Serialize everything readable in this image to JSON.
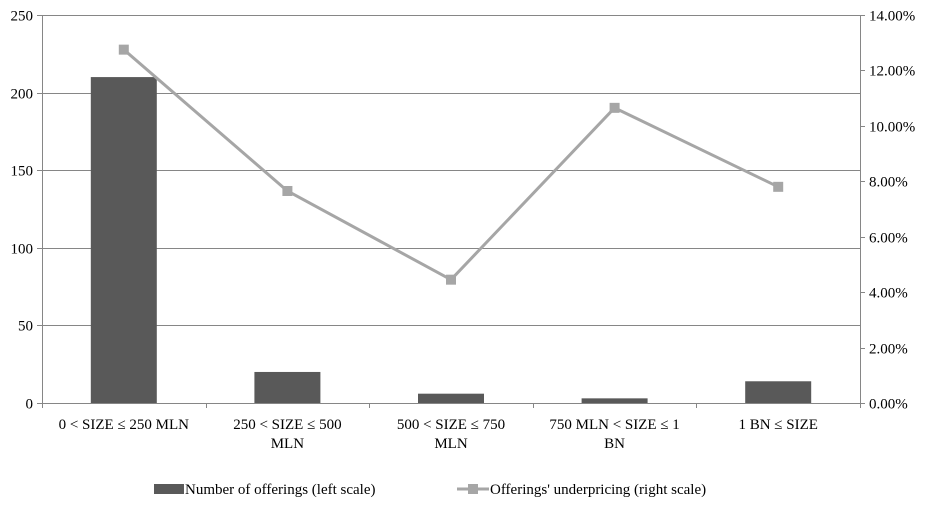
{
  "chart_data": {
    "type": "bar",
    "combo": "bar+line",
    "categories": [
      [
        "0 < SIZE ≤ 250 MLN"
      ],
      [
        "250 < SIZE ≤ 500",
        "MLN"
      ],
      [
        "500 < SIZE ≤ 750",
        "MLN"
      ],
      [
        "750 MLN < SIZE ≤ 1",
        "BN"
      ],
      [
        "1 BN  ≤ SIZE"
      ]
    ],
    "series": [
      {
        "name": "Number of offerings (left scale)",
        "type": "bar",
        "axis": "left",
        "color": "#595959",
        "values": [
          210,
          20,
          6,
          3,
          14
        ]
      },
      {
        "name": "Offerings' underpricing (right scale)",
        "type": "line",
        "axis": "right",
        "color": "#a6a6a6",
        "marker": "square",
        "values": [
          0.1275,
          0.0765,
          0.0445,
          0.1065,
          0.078
        ]
      }
    ],
    "left_axis": {
      "ylim": [
        0,
        250
      ],
      "ticks": [
        0,
        50,
        100,
        150,
        200,
        250
      ],
      "tick_labels": [
        "0",
        "50",
        "100",
        "150",
        "200",
        "250"
      ]
    },
    "right_axis": {
      "ylim": [
        0,
        0.14
      ],
      "ticks": [
        0,
        0.02,
        0.04,
        0.06,
        0.08,
        0.1,
        0.12,
        0.14
      ],
      "tick_labels": [
        "0.00%",
        "2.00%",
        "4.00%",
        "6.00%",
        "8.00%",
        "10.00%",
        "12.00%",
        "14.00%"
      ]
    },
    "grid": true,
    "legend": "bottom",
    "title": "",
    "xlabel": "",
    "ylabel": ""
  }
}
